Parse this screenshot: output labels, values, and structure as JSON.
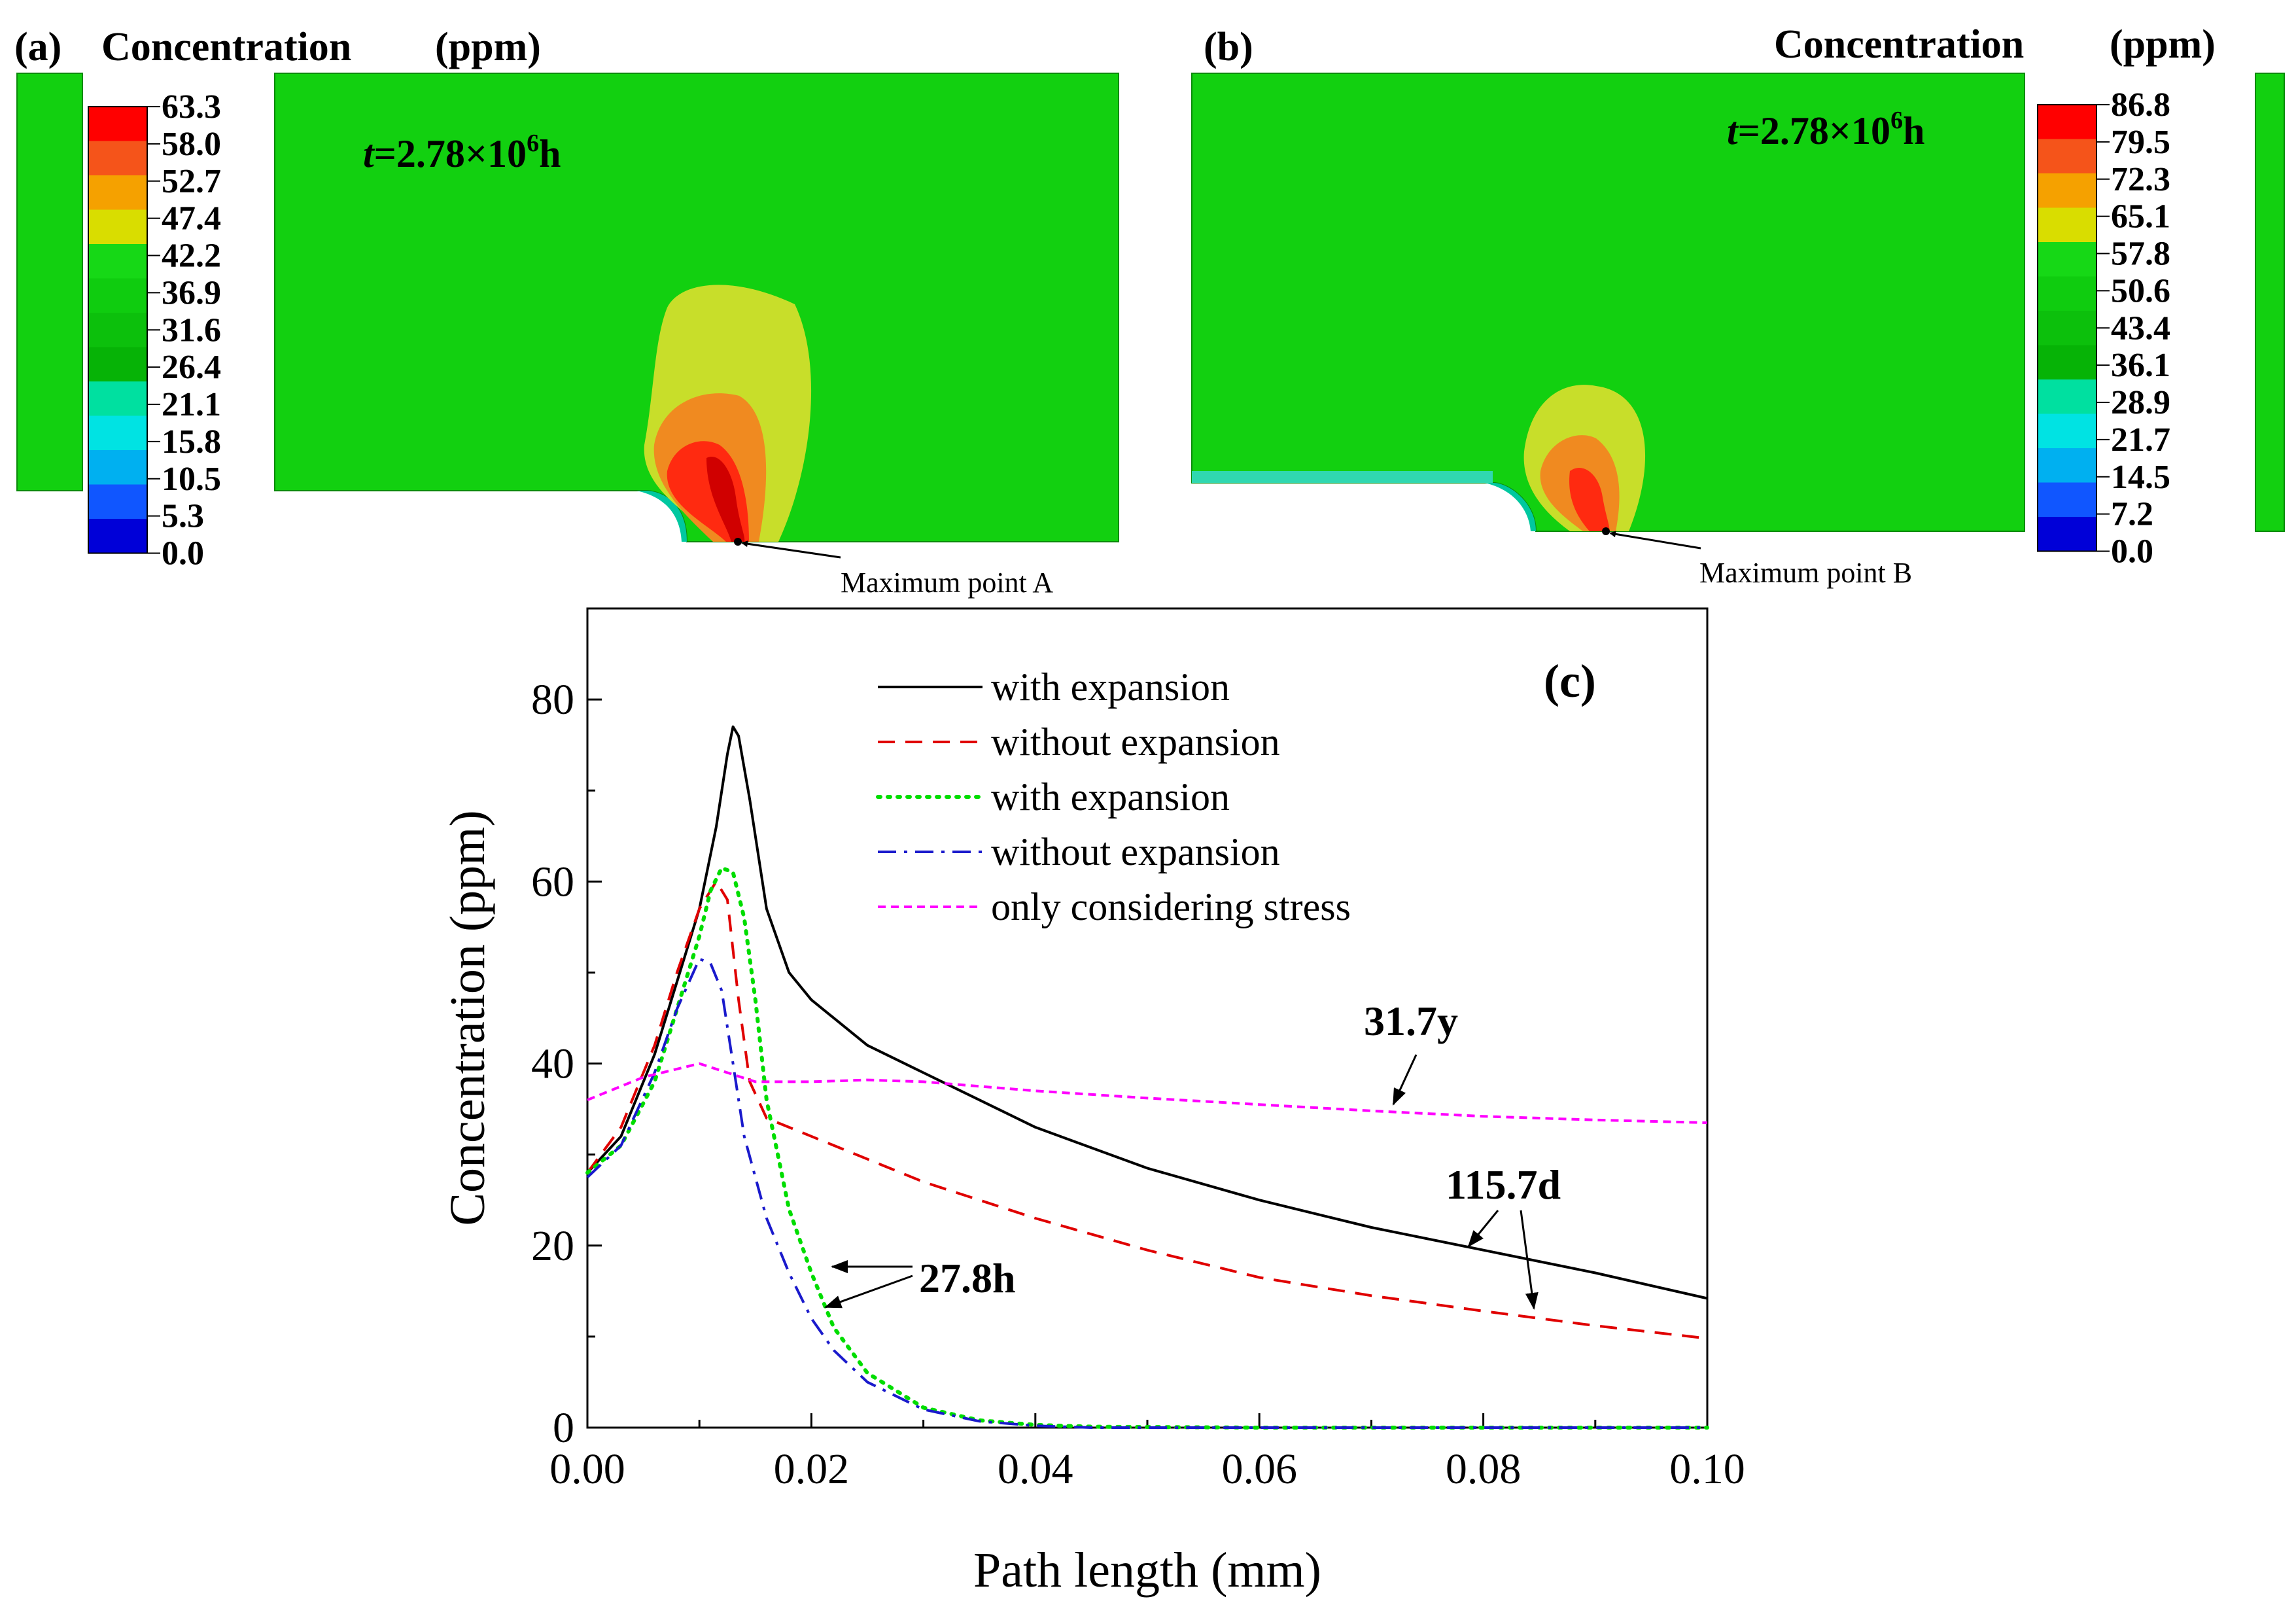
{
  "panel_a": {
    "label": "(a)",
    "title": "Concentration",
    "unit": "(ppm)",
    "time_label": {
      "prefix": "t",
      "text": "=2.78×10",
      "exp": "6",
      "suffix": "h"
    },
    "legend_values": [
      "63.3",
      "58.0",
      "52.7",
      "47.4",
      "42.2",
      "36.9",
      "31.6",
      "26.4",
      "21.1",
      "15.8",
      "10.5",
      "5.3",
      "0.0"
    ],
    "annotation": "Maximum point A"
  },
  "panel_b": {
    "label": "(b)",
    "title": "Concentration",
    "unit": "(ppm)",
    "time_label": {
      "prefix": "t",
      "text": "=2.78×10",
      "exp": "6",
      "suffix": "h"
    },
    "legend_values": [
      "86.8",
      "79.5",
      "72.3",
      "65.1",
      "57.8",
      "50.6",
      "43.4",
      "36.1",
      "28.9",
      "21.7",
      "14.5",
      "7.2",
      "0.0"
    ],
    "annotation": "Maximum point B"
  },
  "legend_colors": [
    "#ff0000",
    "#f5541a",
    "#f5a100",
    "#d9dd00",
    "#16d816",
    "#0fcc0f",
    "#0cc00c",
    "#06b306",
    "#00e0a0",
    "#00e3e3",
    "#00b0f0",
    "#1056ff",
    "#0000d8"
  ],
  "field_colors": {
    "background": "#12d010",
    "yellow": "#c8de2a",
    "orange": "#f08a20",
    "red": "#ff2a10",
    "dark_red": "#d00000"
  },
  "chart_data": {
    "type": "line",
    "panel_label": "(c)",
    "xlabel": "Path length (mm)",
    "ylabel": "Concentration (ppm)",
    "xlim": [
      0,
      0.1
    ],
    "ylim": [
      0,
      90
    ],
    "x_ticks": [
      "0.00",
      "0.02",
      "0.04",
      "0.06",
      "0.08",
      "0.10"
    ],
    "y_ticks": [
      "0",
      "20",
      "40",
      "60",
      "80"
    ],
    "legend_position": "top-center",
    "series": [
      {
        "name": "with expansion",
        "color": "#000000",
        "style": "solid",
        "x": [
          0,
          0.003,
          0.006,
          0.008,
          0.01,
          0.0115,
          0.0125,
          0.013,
          0.0135,
          0.0145,
          0.016,
          0.018,
          0.02,
          0.025,
          0.03,
          0.035,
          0.04,
          0.05,
          0.06,
          0.07,
          0.08,
          0.09,
          0.1
        ],
        "y": [
          28,
          32,
          41,
          49,
          57,
          66,
          74,
          77,
          76,
          69,
          57,
          50,
          47,
          42,
          39,
          36,
          33,
          28.5,
          25,
          22,
          19.5,
          17,
          14.2
        ]
      },
      {
        "name": "without expansion",
        "color": "#e00000",
        "style": "dashed",
        "x": [
          0,
          0.003,
          0.006,
          0.008,
          0.01,
          0.0115,
          0.0125,
          0.0135,
          0.0145,
          0.016,
          0.02,
          0.03,
          0.04,
          0.05,
          0.06,
          0.07,
          0.08,
          0.09,
          0.1
        ],
        "y": [
          28,
          33,
          42,
          50,
          57,
          60,
          58,
          47,
          38,
          34,
          32,
          27,
          23,
          19.5,
          16.5,
          14.5,
          12.8,
          11.2,
          9.8
        ]
      },
      {
        "name": "with expansion",
        "color": "#00dd00",
        "style": "dotted",
        "x": [
          0,
          0.003,
          0.006,
          0.008,
          0.01,
          0.011,
          0.012,
          0.013,
          0.014,
          0.015,
          0.016,
          0.018,
          0.02,
          0.022,
          0.025,
          0.03,
          0.035,
          0.04,
          0.045,
          0.06,
          0.08,
          0.1
        ],
        "y": [
          28,
          31,
          38,
          46,
          54,
          59,
          61.5,
          61,
          56,
          47,
          36,
          24,
          17,
          11,
          6,
          2.2,
          0.8,
          0.3,
          0.1,
          0,
          0,
          0
        ]
      },
      {
        "name": "without expansion",
        "color": "#1a1acc",
        "style": "dashdot",
        "x": [
          0,
          0.003,
          0.006,
          0.008,
          0.01,
          0.011,
          0.012,
          0.013,
          0.014,
          0.016,
          0.018,
          0.02,
          0.022,
          0.025,
          0.03,
          0.035,
          0.04,
          0.045,
          0.06,
          0.08,
          0.1
        ],
        "y": [
          27.5,
          31,
          39,
          46,
          51.5,
          51,
          48,
          40,
          32,
          23,
          17,
          12,
          8.5,
          5,
          2,
          0.7,
          0.2,
          0,
          0,
          0,
          0
        ]
      },
      {
        "name": "only considering stress",
        "color": "#ff00ff",
        "style": "shortdash",
        "x": [
          0,
          0.005,
          0.01,
          0.015,
          0.02,
          0.025,
          0.03,
          0.04,
          0.05,
          0.06,
          0.07,
          0.08,
          0.09,
          0.1
        ],
        "y": [
          36,
          38.5,
          40,
          38,
          38,
          38.2,
          38,
          37,
          36.2,
          35.5,
          34.8,
          34.2,
          33.8,
          33.5
        ]
      }
    ],
    "annotations": [
      {
        "text": "31.7y"
      },
      {
        "text": "115.7d"
      },
      {
        "text": "27.8h"
      }
    ]
  }
}
